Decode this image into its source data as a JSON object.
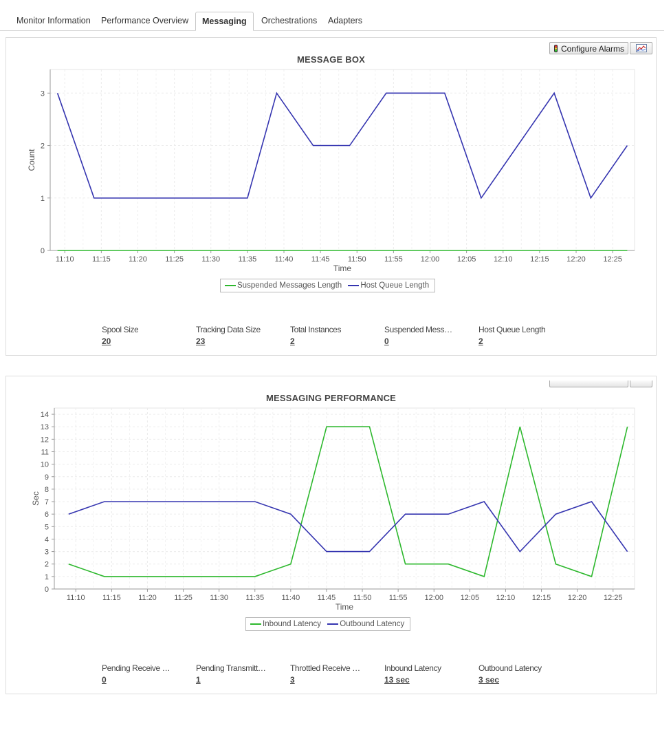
{
  "tabs": [
    {
      "label": "Monitor Information",
      "active": false
    },
    {
      "label": "Performance Overview",
      "active": false
    },
    {
      "label": "Messaging",
      "active": true
    },
    {
      "label": "Orchestrations",
      "active": false
    },
    {
      "label": "Adapters",
      "active": false
    }
  ],
  "message_box": {
    "title": "MESSAGE BOX",
    "configure_alarms_label": "Configure Alarms",
    "stats": [
      {
        "label": "Spool Size",
        "value": "20"
      },
      {
        "label": "Tracking Data Size",
        "value": "23"
      },
      {
        "label": "Total Instances",
        "value": "2"
      },
      {
        "label": "Suspended Mess…",
        "value": "0"
      },
      {
        "label": "Host Queue Length",
        "value": "2"
      }
    ]
  },
  "messaging_performance": {
    "title": "MESSAGING PERFORMANCE",
    "stats": [
      {
        "label": "Pending Receive …",
        "value": "0"
      },
      {
        "label": "Pending Transmitt…",
        "value": "1"
      },
      {
        "label": "Throttled Receive …",
        "value": "3"
      },
      {
        "label": "Inbound Latency",
        "value": "13 sec"
      },
      {
        "label": "Outbound Latency",
        "value": "3 sec"
      }
    ]
  },
  "chart_data": [
    {
      "type": "line",
      "title": "MESSAGE BOX",
      "xlabel": "Time",
      "ylabel": "Count",
      "x_ticks": [
        "11:10",
        "11:15",
        "11:20",
        "11:25",
        "11:30",
        "11:35",
        "11:40",
        "11:45",
        "11:50",
        "11:55",
        "12:00",
        "12:05",
        "12:10",
        "12:15",
        "12:20",
        "12:25"
      ],
      "ylim": [
        0,
        3.45
      ],
      "y_ticks": [
        0,
        1,
        2,
        3
      ],
      "grid": true,
      "legend": "bottom-center",
      "series": [
        {
          "name": "Suspended Messages Length",
          "color": "#2db82d",
          "x": [
            "11:09",
            "11:14",
            "11:19",
            "11:24",
            "11:29",
            "11:34",
            "11:39",
            "11:44",
            "11:49",
            "11:54",
            "11:59",
            "12:04",
            "12:09",
            "12:14",
            "12:19",
            "12:24",
            "12:27"
          ],
          "values": [
            0,
            0,
            0,
            0,
            0,
            0,
            0,
            0,
            0,
            0,
            0,
            0,
            0,
            0,
            0,
            0,
            0
          ]
        },
        {
          "name": "Host Queue Length",
          "color": "#3535b0",
          "x": [
            "11:09",
            "11:14",
            "11:35",
            "11:39",
            "11:44",
            "11:49",
            "11:54",
            "12:02",
            "12:07",
            "12:17",
            "12:22",
            "12:27"
          ],
          "values": [
            3,
            1,
            1,
            3,
            2,
            2,
            3,
            3,
            1,
            3,
            1,
            2
          ]
        }
      ]
    },
    {
      "type": "line",
      "title": "MESSAGING PERFORMANCE",
      "xlabel": "Time",
      "ylabel": "Sec",
      "x_ticks": [
        "11:10",
        "11:15",
        "11:20",
        "11:25",
        "11:30",
        "11:35",
        "11:40",
        "11:45",
        "11:50",
        "11:55",
        "12:00",
        "12:05",
        "12:10",
        "12:15",
        "12:20",
        "12:25"
      ],
      "ylim": [
        0,
        14.5
      ],
      "y_ticks": [
        0,
        1,
        2,
        3,
        4,
        5,
        6,
        7,
        8,
        9,
        10,
        11,
        12,
        13,
        14
      ],
      "grid": true,
      "legend": "bottom-center",
      "series": [
        {
          "name": "Inbound Latency",
          "color": "#2db82d",
          "x": [
            "11:09",
            "11:14",
            "11:35",
            "11:40",
            "11:45",
            "11:51",
            "11:56",
            "12:02",
            "12:07",
            "12:12",
            "12:17",
            "12:22",
            "12:27"
          ],
          "values": [
            2,
            1,
            1,
            2,
            13,
            13,
            2,
            2,
            1,
            13,
            2,
            1,
            13
          ]
        },
        {
          "name": "Outbound Latency",
          "color": "#3535b0",
          "x": [
            "11:09",
            "11:14",
            "11:35",
            "11:40",
            "11:45",
            "11:51",
            "11:56",
            "12:02",
            "12:07",
            "12:12",
            "12:17",
            "12:22",
            "12:27"
          ],
          "values": [
            6,
            7,
            7,
            6,
            3,
            3,
            6,
            6,
            7,
            3,
            6,
            7,
            3
          ]
        }
      ]
    }
  ]
}
